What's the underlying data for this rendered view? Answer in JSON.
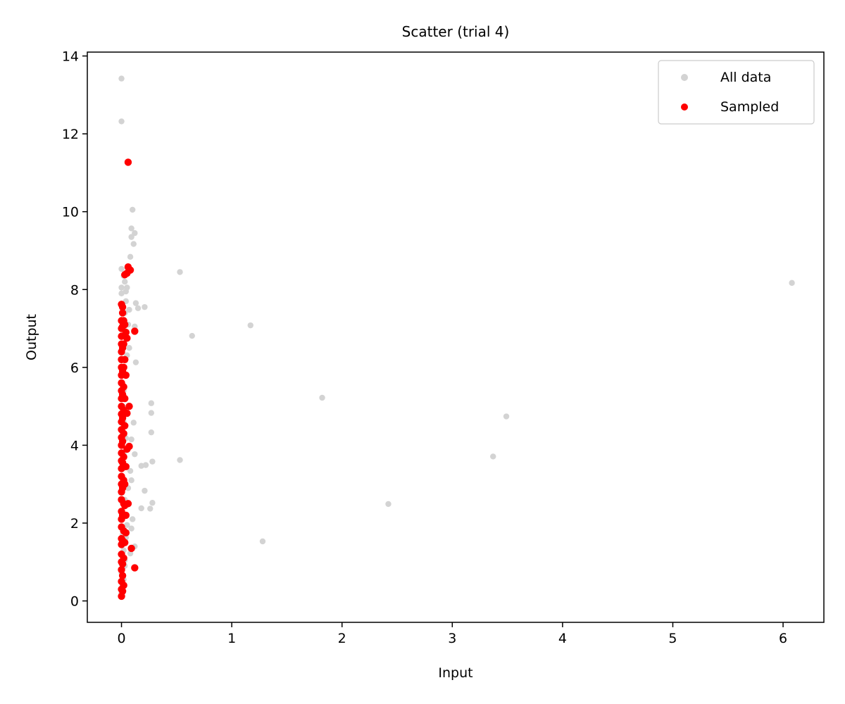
{
  "chart_data": {
    "type": "scatter",
    "title": "Scatter (trial 4)",
    "xlabel": "Input",
    "ylabel": "Output",
    "xlim": [
      -0.31,
      6.37
    ],
    "ylim": [
      -0.55,
      14.1
    ],
    "xticks": [
      0,
      1,
      2,
      3,
      4,
      5,
      6
    ],
    "yticks": [
      0,
      2,
      4,
      6,
      8,
      10,
      12,
      14
    ],
    "grid": false,
    "legend": {
      "placement": "top-right",
      "entries": [
        "All data",
        "Sampled"
      ]
    },
    "series": [
      {
        "name": "All data",
        "color": "#d3d3d3",
        "points": [
          [
            0.0,
            13.42
          ],
          [
            0.0,
            12.32
          ],
          [
            0.1,
            10.05
          ],
          [
            0.09,
            9.57
          ],
          [
            0.12,
            9.45
          ],
          [
            0.09,
            9.35
          ],
          [
            0.11,
            9.17
          ],
          [
            0.08,
            8.84
          ],
          [
            0.0,
            8.53
          ],
          [
            0.53,
            8.45
          ],
          [
            6.08,
            8.17
          ],
          [
            0.0,
            8.05
          ],
          [
            0.05,
            8.05
          ],
          [
            0.0,
            7.9
          ],
          [
            0.13,
            7.65
          ],
          [
            0.21,
            7.55
          ],
          [
            0.15,
            7.52
          ],
          [
            0.07,
            7.48
          ],
          [
            1.17,
            7.08
          ],
          [
            0.12,
            7.05
          ],
          [
            0.64,
            6.81
          ],
          [
            0.05,
            6.31
          ],
          [
            0.13,
            6.13
          ],
          [
            0.27,
            5.08
          ],
          [
            1.82,
            5.22
          ],
          [
            0.27,
            4.83
          ],
          [
            3.49,
            4.74
          ],
          [
            0.11,
            4.58
          ],
          [
            0.27,
            4.33
          ],
          [
            0.04,
            4.18
          ],
          [
            0.09,
            4.15
          ],
          [
            0.12,
            3.77
          ],
          [
            3.37,
            3.71
          ],
          [
            0.53,
            3.62
          ],
          [
            0.28,
            3.58
          ],
          [
            0.22,
            3.49
          ],
          [
            0.18,
            3.47
          ],
          [
            0.08,
            3.34
          ],
          [
            0.09,
            3.1
          ],
          [
            0.06,
            2.9
          ],
          [
            0.21,
            2.83
          ],
          [
            0.28,
            2.52
          ],
          [
            2.42,
            2.49
          ],
          [
            0.18,
            2.38
          ],
          [
            0.26,
            2.37
          ],
          [
            0.1,
            2.1
          ],
          [
            0.05,
            1.95
          ],
          [
            0.09,
            1.86
          ],
          [
            0.04,
            1.63
          ],
          [
            1.28,
            1.53
          ],
          [
            0.12,
            1.4
          ],
          [
            0.08,
            1.22
          ],
          [
            0.03,
            1.05
          ],
          [
            0.0,
            0.72
          ],
          [
            0.01,
            0.4
          ],
          [
            0.0,
            0.2
          ],
          [
            0.02,
            0.55
          ],
          [
            0.03,
            0.9
          ],
          [
            0.02,
            1.3
          ],
          [
            0.01,
            1.7
          ],
          [
            0.02,
            2.2
          ],
          [
            0.03,
            2.6
          ],
          [
            0.02,
            3.0
          ],
          [
            0.01,
            3.4
          ],
          [
            0.02,
            3.8
          ],
          [
            0.03,
            4.2
          ],
          [
            0.02,
            4.6
          ],
          [
            0.01,
            5.0
          ],
          [
            0.02,
            5.4
          ],
          [
            0.03,
            5.8
          ],
          [
            0.02,
            6.2
          ],
          [
            0.01,
            6.6
          ],
          [
            0.02,
            7.0
          ],
          [
            0.03,
            7.4
          ],
          [
            0.04,
            7.7
          ],
          [
            0.03,
            8.2
          ],
          [
            0.02,
            8.35
          ],
          [
            0.04,
            7.95
          ],
          [
            0.06,
            7.1
          ],
          [
            0.07,
            6.5
          ]
        ]
      },
      {
        "name": "Sampled",
        "color": "#ff0000",
        "points": [
          [
            0.06,
            11.27
          ],
          [
            0.06,
            8.58
          ],
          [
            0.08,
            8.5
          ],
          [
            0.03,
            8.38
          ],
          [
            0.05,
            8.42
          ],
          [
            0.0,
            7.62
          ],
          [
            0.01,
            7.55
          ],
          [
            0.01,
            7.4
          ],
          [
            0.02,
            7.2
          ],
          [
            0.03,
            7.1
          ],
          [
            0.12,
            6.93
          ],
          [
            0.05,
            6.75
          ],
          [
            0.03,
            6.2
          ],
          [
            0.04,
            5.8
          ],
          [
            0.07,
            5.0
          ],
          [
            0.05,
            4.82
          ],
          [
            0.07,
            3.97
          ],
          [
            0.05,
            3.9
          ],
          [
            0.04,
            3.45
          ],
          [
            0.06,
            2.5
          ],
          [
            0.03,
            2.45
          ],
          [
            0.04,
            1.75
          ],
          [
            0.09,
            1.35
          ],
          [
            0.12,
            0.85
          ],
          [
            0.01,
            0.65
          ],
          [
            0.0,
            0.12
          ],
          [
            0.0,
            0.3
          ],
          [
            0.0,
            0.5
          ],
          [
            0.0,
            0.8
          ],
          [
            0.0,
            1.0
          ],
          [
            0.0,
            1.2
          ],
          [
            0.0,
            1.45
          ],
          [
            0.0,
            1.6
          ],
          [
            0.0,
            1.9
          ],
          [
            0.0,
            2.1
          ],
          [
            0.0,
            2.3
          ],
          [
            0.0,
            2.6
          ],
          [
            0.0,
            2.8
          ],
          [
            0.0,
            3.0
          ],
          [
            0.0,
            3.2
          ],
          [
            0.0,
            3.4
          ],
          [
            0.0,
            3.6
          ],
          [
            0.0,
            3.8
          ],
          [
            0.0,
            4.0
          ],
          [
            0.0,
            4.2
          ],
          [
            0.0,
            4.4
          ],
          [
            0.0,
            4.6
          ],
          [
            0.0,
            4.8
          ],
          [
            0.0,
            5.0
          ],
          [
            0.0,
            5.2
          ],
          [
            0.0,
            5.4
          ],
          [
            0.0,
            5.6
          ],
          [
            0.0,
            5.8
          ],
          [
            0.0,
            6.0
          ],
          [
            0.0,
            6.2
          ],
          [
            0.0,
            6.4
          ],
          [
            0.0,
            6.6
          ],
          [
            0.0,
            6.8
          ],
          [
            0.0,
            7.0
          ],
          [
            0.0,
            7.2
          ],
          [
            0.01,
            0.25
          ],
          [
            0.01,
            0.95
          ],
          [
            0.01,
            1.55
          ],
          [
            0.01,
            2.2
          ],
          [
            0.01,
            2.9
          ],
          [
            0.01,
            3.55
          ],
          [
            0.01,
            4.1
          ],
          [
            0.01,
            4.7
          ],
          [
            0.01,
            5.3
          ],
          [
            0.01,
            5.9
          ],
          [
            0.01,
            6.5
          ],
          [
            0.01,
            7.05
          ],
          [
            0.02,
            0.4
          ],
          [
            0.02,
            1.1
          ],
          [
            0.02,
            1.8
          ],
          [
            0.02,
            2.5
          ],
          [
            0.02,
            3.1
          ],
          [
            0.02,
            3.7
          ],
          [
            0.02,
            4.3
          ],
          [
            0.02,
            4.9
          ],
          [
            0.02,
            5.5
          ],
          [
            0.02,
            6.0
          ],
          [
            0.02,
            6.6
          ],
          [
            0.03,
            1.5
          ],
          [
            0.03,
            3.0
          ],
          [
            0.03,
            4.5
          ],
          [
            0.03,
            5.2
          ],
          [
            0.04,
            2.2
          ],
          [
            0.04,
            6.9
          ]
        ]
      }
    ]
  }
}
